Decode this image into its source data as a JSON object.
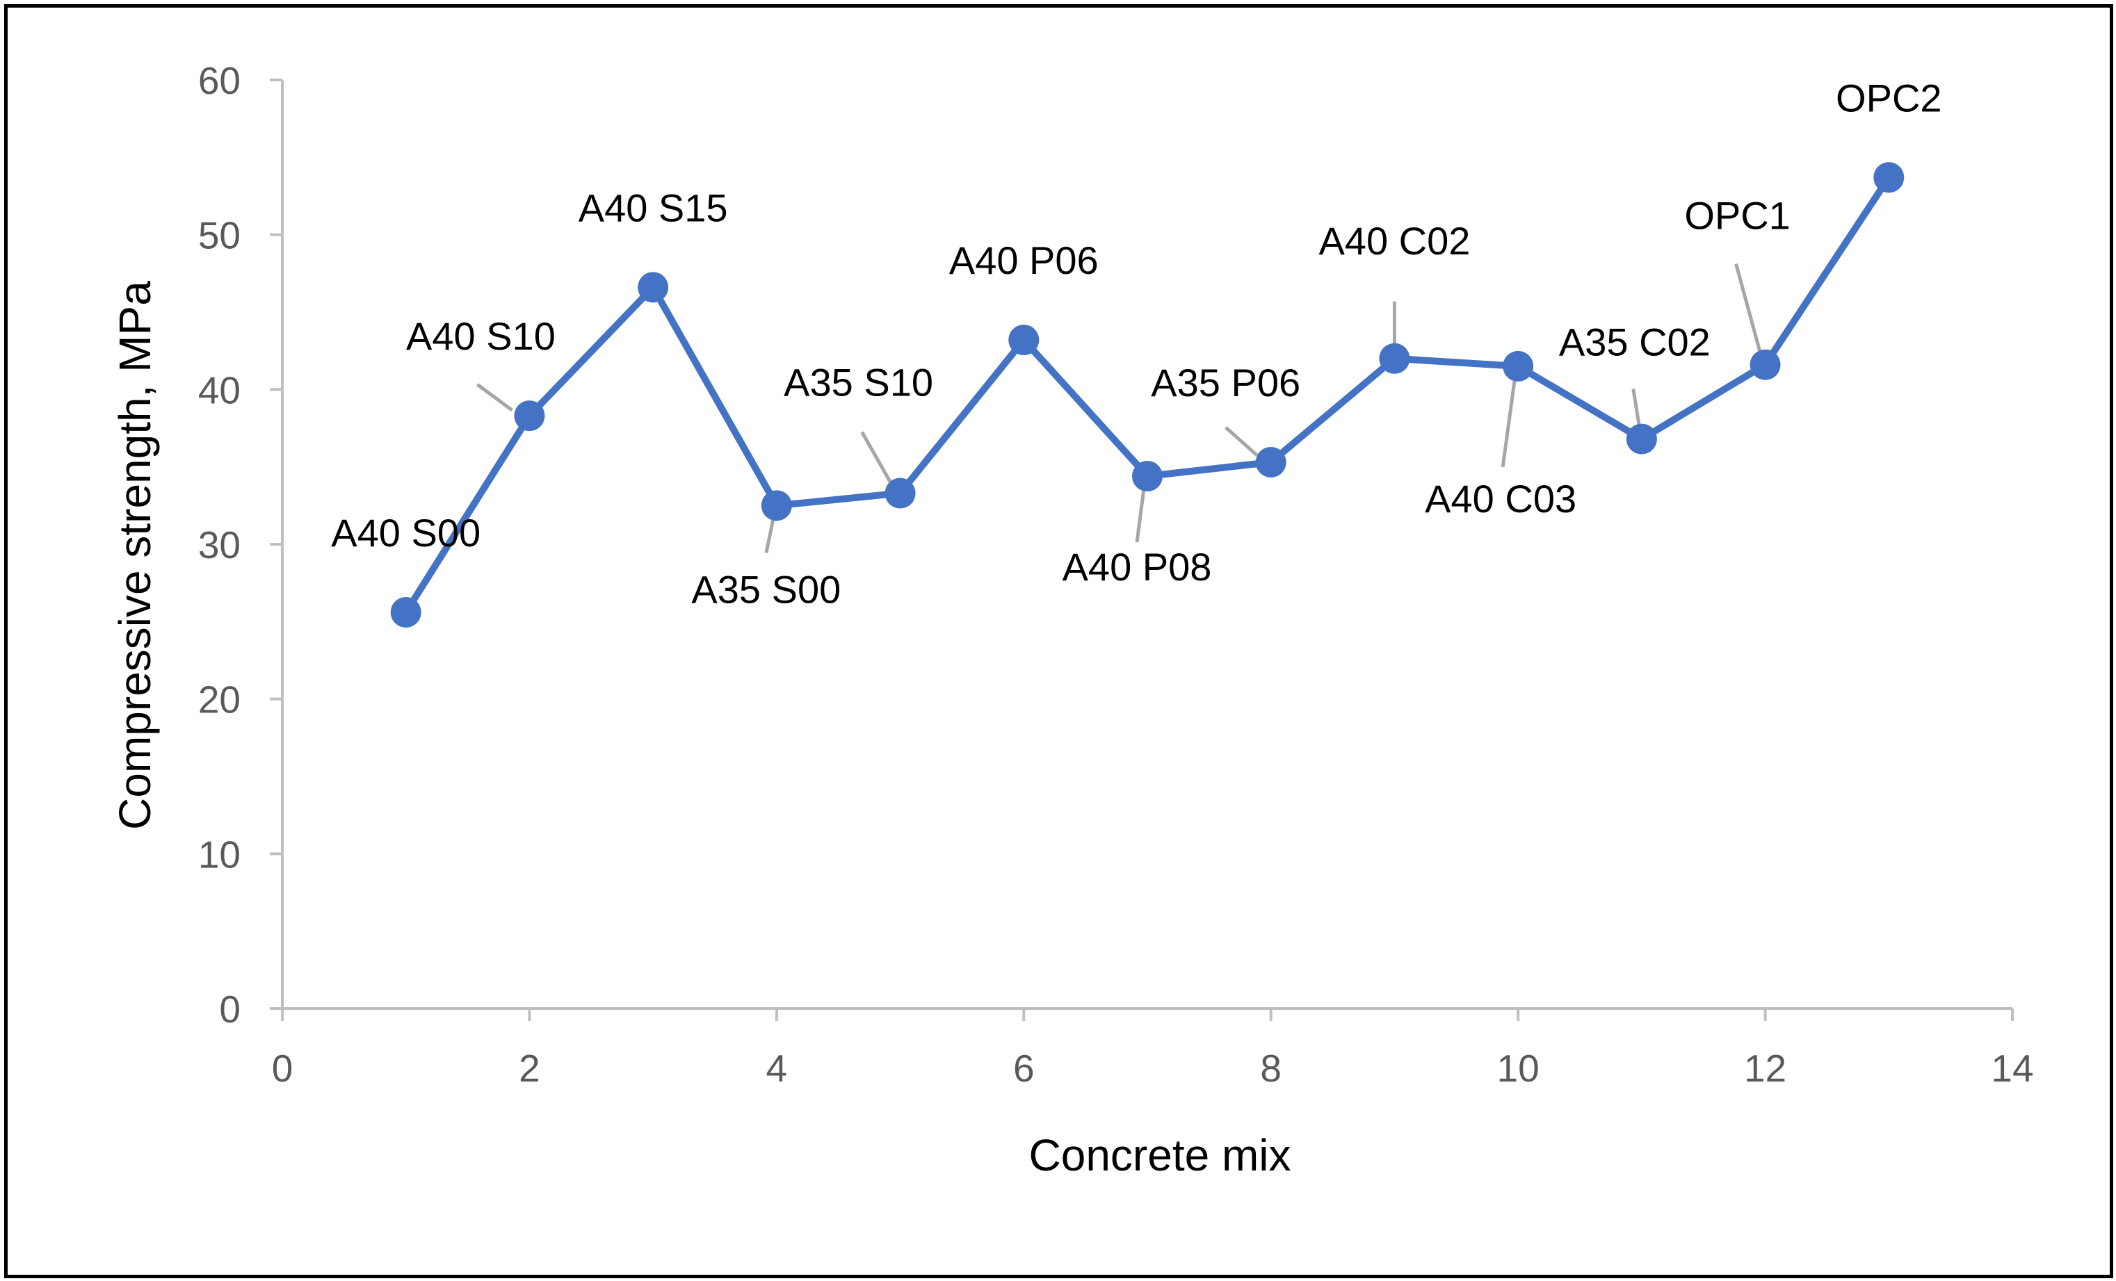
{
  "chart_data": {
    "type": "scatter",
    "title": "",
    "xlabel": "Concrete mix",
    "ylabel": "Compressive strength, MPa",
    "xlim": [
      0,
      14
    ],
    "ylim": [
      0,
      60
    ],
    "x_ticks": [
      0,
      2,
      4,
      6,
      8,
      10,
      12,
      14
    ],
    "y_ticks": [
      0,
      10,
      20,
      30,
      40,
      50,
      60
    ],
    "x_tick_labels": [
      "0",
      "2",
      "4",
      "6",
      "8",
      "10",
      "12",
      "14"
    ],
    "y_tick_labels": [
      "0",
      "10",
      "20",
      "30",
      "40",
      "50",
      "60"
    ],
    "grid": false,
    "legend": "none",
    "series": [
      {
        "name": "Compressive strength",
        "color": "#4472c4",
        "marker": "circle",
        "line": "straight",
        "points": [
          {
            "x": 1,
            "y": 25.6,
            "label": "A40 S00"
          },
          {
            "x": 2,
            "y": 38.3,
            "label": "A40 S10"
          },
          {
            "x": 3,
            "y": 46.6,
            "label": "A40 S15"
          },
          {
            "x": 4,
            "y": 32.5,
            "label": "A35 S00"
          },
          {
            "x": 5,
            "y": 33.3,
            "label": "A35 S10"
          },
          {
            "x": 6,
            "y": 43.2,
            "label": "A40 P06"
          },
          {
            "x": 7,
            "y": 34.4,
            "label": "A40 P08"
          },
          {
            "x": 8,
            "y": 35.3,
            "label": "A35 P06"
          },
          {
            "x": 9,
            "y": 42.0,
            "label": "A40 C02"
          },
          {
            "x": 10,
            "y": 41.5,
            "label": "A40 C03"
          },
          {
            "x": 11,
            "y": 36.8,
            "label": "A35 C02"
          },
          {
            "x": 12,
            "y": 41.6,
            "label": "OPC1"
          },
          {
            "x": 13,
            "y": 53.7,
            "label": "OPC2"
          }
        ]
      }
    ]
  },
  "colors": {
    "series": "#4472c4",
    "axis": "#bfbfbf",
    "tick_text": "#595959",
    "leader": "#a6a6a6",
    "frame": "#000000"
  }
}
